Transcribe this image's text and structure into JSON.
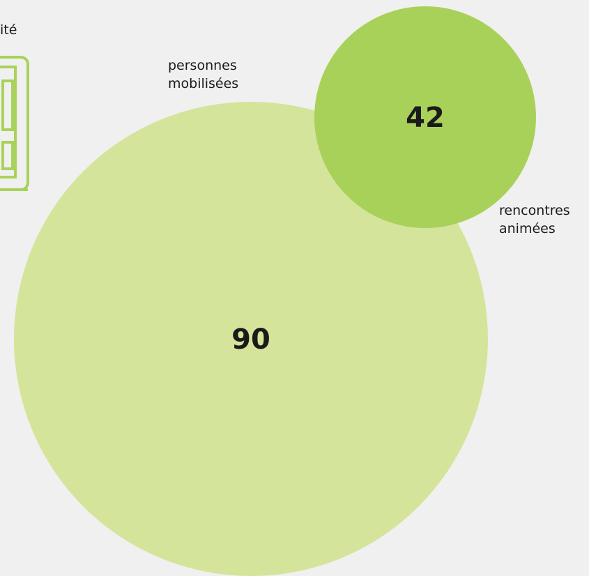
{
  "partial_text": "ité",
  "colors": {
    "background": "#f0f0f0",
    "large_bubble": "#d4e49a",
    "small_bubble": "#a8d15a",
    "icon": "#a9d25b"
  },
  "icon": "building-outline-icon",
  "chart_data": {
    "type": "bubble",
    "bubbles": [
      {
        "label_lines": [
          "personnes",
          "mobilisées"
        ],
        "value": 90,
        "value_label": "90",
        "color": "#d4e49a"
      },
      {
        "label_lines": [
          "rencontres",
          "animées"
        ],
        "value": 42,
        "value_label": "42",
        "color": "#a8d15a"
      }
    ]
  }
}
